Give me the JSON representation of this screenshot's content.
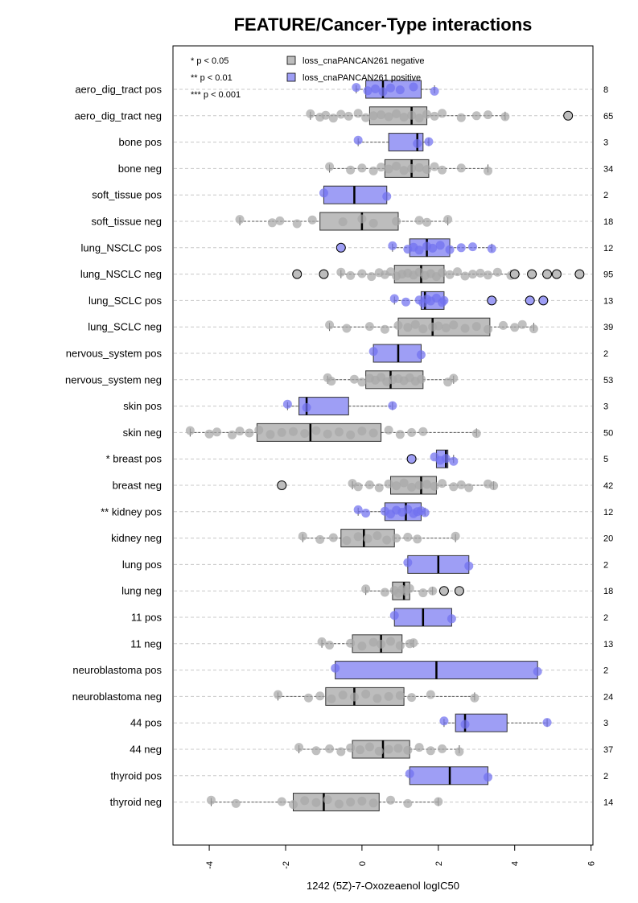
{
  "chart_data": {
    "type": "boxplot",
    "title": "FEATURE/Cancer-Type interactions",
    "xlabel": "1242 (5Z)-7-Oxozeaenol logIC50",
    "xlim": [
      -4.95,
      6.05
    ],
    "xticks": [
      -4,
      -2,
      0,
      2,
      4,
      6
    ],
    "xtick_labels": [
      "-4",
      "-2",
      "0",
      "2",
      "4",
      "6"
    ],
    "grid": "horizontal dashed",
    "legend": {
      "position": "top",
      "significance": [
        "* p < 0.05",
        "** p < 0.01",
        "*** p < 0.001"
      ],
      "groups": [
        {
          "label": "loss_cnaPANCAN261 negative",
          "color": "#bdbdbd"
        },
        {
          "label": "loss_cnaPANCAN261 positive",
          "color": "#9e9ef5"
        }
      ]
    },
    "colors": {
      "negative_fill": "#bdbdbd",
      "positive_fill": "#9e9ef5",
      "negative_point": "#a8a8a8",
      "positive_point": "#7070f0"
    },
    "rows": [
      {
        "label": "aero_dig_tract pos",
        "group": "pos",
        "n": "8",
        "whisker": [
          -0.15,
          1.9
        ],
        "box": [
          0.1,
          1.55
        ],
        "median": 0.55,
        "points": [
          -0.15,
          0.15,
          0.35,
          0.55,
          0.75,
          1.0,
          1.35,
          1.9
        ],
        "outliers": []
      },
      {
        "label": "aero_dig_tract neg",
        "group": "neg",
        "n": "65",
        "whisker": [
          -1.35,
          3.75
        ],
        "box": [
          0.2,
          1.7
        ],
        "median": 1.3,
        "points": [
          -1.35,
          -1.1,
          -0.95,
          -0.75,
          -0.55,
          -0.35,
          -0.1,
          0.1,
          0.3,
          0.5,
          0.7,
          0.9,
          1.1,
          1.3,
          1.5,
          1.7,
          1.9,
          2.1,
          2.6,
          3.0,
          3.3,
          3.75
        ],
        "outliers": [
          5.4
        ]
      },
      {
        "label": "bone pos",
        "group": "pos",
        "n": "3",
        "whisker": [
          -0.1,
          1.75
        ],
        "box": [
          0.7,
          1.6
        ],
        "median": 1.45,
        "points": [
          -0.1,
          1.45,
          1.75
        ],
        "outliers": []
      },
      {
        "label": "bone neg",
        "group": "neg",
        "n": "34",
        "whisker": [
          -0.85,
          3.3
        ],
        "box": [
          0.6,
          1.75
        ],
        "median": 1.3,
        "points": [
          -0.85,
          -0.3,
          0.0,
          0.3,
          0.5,
          0.7,
          0.9,
          1.1,
          1.3,
          1.5,
          1.7,
          1.9,
          2.1,
          2.6,
          3.3
        ],
        "outliers": []
      },
      {
        "label": "soft_tissue pos",
        "group": "pos",
        "n": "2",
        "whisker": [
          -1.0,
          0.65
        ],
        "box": [
          -1.0,
          0.65
        ],
        "median": -0.2,
        "points": [
          -1.0,
          0.65
        ],
        "outliers": []
      },
      {
        "label": "soft_tissue neg",
        "group": "neg",
        "n": "18",
        "whisker": [
          -3.2,
          2.25
        ],
        "box": [
          -1.1,
          0.95
        ],
        "median": 0.0,
        "points": [
          -3.2,
          -2.35,
          -2.15,
          -1.7,
          -1.3,
          -0.5,
          0.0,
          0.3,
          0.9,
          1.5,
          1.7,
          2.25
        ],
        "outliers": []
      },
      {
        "label": "lung_NSCLC pos",
        "group": "pos",
        "n": "12",
        "whisker": [
          0.8,
          3.4
        ],
        "box": [
          1.25,
          2.3
        ],
        "median": 1.7,
        "points": [
          0.8,
          1.2,
          1.35,
          1.5,
          1.7,
          1.85,
          2.05,
          2.3,
          2.6,
          2.9,
          3.4
        ],
        "outliers": [
          -0.55
        ]
      },
      {
        "label": "lung_NSCLC neg",
        "group": "neg",
        "n": "95",
        "whisker": [
          -0.55,
          3.9
        ],
        "box": [
          0.85,
          2.15
        ],
        "median": 1.55,
        "points": [
          -0.55,
          -0.3,
          0.0,
          0.25,
          0.45,
          0.6,
          0.75,
          0.9,
          1.05,
          1.2,
          1.35,
          1.5,
          1.65,
          1.8,
          1.95,
          2.1,
          2.3,
          2.5,
          2.7,
          2.9,
          3.1,
          3.3,
          3.55,
          3.9
        ],
        "outliers": [
          -1.7,
          -1.0,
          4.0,
          4.45,
          4.85,
          5.1,
          5.7
        ]
      },
      {
        "label": "lung_SCLC pos",
        "group": "pos",
        "n": "13",
        "whisker": [
          0.85,
          2.15
        ],
        "box": [
          1.55,
          2.15
        ],
        "median": 1.65,
        "points": [
          0.85,
          1.15,
          1.5,
          1.6,
          1.7,
          1.8,
          1.95,
          2.1,
          2.15
        ],
        "outliers": [
          3.4,
          4.4,
          4.75
        ]
      },
      {
        "label": "lung_SCLC neg",
        "group": "neg",
        "n": "39",
        "whisker": [
          -0.85,
          4.5
        ],
        "box": [
          0.95,
          3.35
        ],
        "median": 1.85,
        "points": [
          -0.85,
          -0.4,
          0.2,
          0.6,
          0.95,
          1.2,
          1.4,
          1.6,
          1.85,
          2.0,
          2.2,
          2.4,
          2.7,
          3.0,
          3.3,
          3.7,
          4.0,
          4.2,
          4.5
        ],
        "outliers": []
      },
      {
        "label": "nervous_system pos",
        "group": "pos",
        "n": "2",
        "whisker": [
          0.3,
          1.55
        ],
        "box": [
          0.3,
          1.55
        ],
        "median": 0.95,
        "points": [
          0.3,
          1.55
        ],
        "outliers": []
      },
      {
        "label": "nervous_system neg",
        "group": "neg",
        "n": "53",
        "whisker": [
          -0.9,
          2.4
        ],
        "box": [
          0.1,
          1.6
        ],
        "median": 0.75,
        "points": [
          -0.9,
          -0.8,
          -0.2,
          0.0,
          0.2,
          0.35,
          0.5,
          0.65,
          0.8,
          0.95,
          1.1,
          1.25,
          1.4,
          1.55,
          2.25,
          2.4
        ],
        "outliers": []
      },
      {
        "label": "skin pos",
        "group": "pos",
        "n": "3",
        "whisker": [
          -1.95,
          0.8
        ],
        "box": [
          -1.65,
          -0.35
        ],
        "median": -1.45,
        "points": [
          -1.95,
          -1.45,
          0.8
        ],
        "outliers": []
      },
      {
        "label": "skin neg",
        "group": "neg",
        "n": "50",
        "whisker": [
          -4.5,
          3.0
        ],
        "box": [
          -2.75,
          0.5
        ],
        "median": -1.35,
        "points": [
          -4.5,
          -4.0,
          -3.8,
          -3.4,
          -3.2,
          -2.95,
          -2.7,
          -2.4,
          -2.1,
          -1.8,
          -1.5,
          -1.2,
          -0.9,
          -0.6,
          -0.3,
          0.0,
          0.3,
          0.7,
          1.0,
          1.3,
          1.6,
          3.0
        ],
        "outliers": []
      },
      {
        "label": "* breast pos",
        "group": "pos",
        "n": "5",
        "whisker": [
          1.95,
          2.4
        ],
        "box": [
          1.95,
          2.25
        ],
        "median": 2.2,
        "points": [
          1.9,
          2.05,
          2.2,
          2.4
        ],
        "outliers": [
          1.3
        ]
      },
      {
        "label": "breast neg",
        "group": "neg",
        "n": "42",
        "whisker": [
          -0.25,
          3.45
        ],
        "box": [
          0.75,
          1.95
        ],
        "median": 1.55,
        "points": [
          -0.25,
          -0.1,
          0.2,
          0.45,
          0.7,
          0.9,
          1.1,
          1.3,
          1.5,
          1.7,
          1.9,
          2.1,
          2.4,
          2.6,
          2.8,
          3.3,
          3.45
        ],
        "outliers": [
          -2.1
        ]
      },
      {
        "label": "** kidney pos",
        "group": "pos",
        "n": "12",
        "whisker": [
          -0.1,
          1.65
        ],
        "box": [
          0.6,
          1.55
        ],
        "median": 1.15,
        "points": [
          -0.1,
          0.1,
          0.6,
          0.75,
          0.9,
          1.05,
          1.2,
          1.35,
          1.45,
          1.55,
          1.65
        ],
        "outliers": []
      },
      {
        "label": "kidney neg",
        "group": "neg",
        "n": "20",
        "whisker": [
          -1.55,
          2.45
        ],
        "box": [
          -0.55,
          0.85
        ],
        "median": 0.05,
        "points": [
          -1.55,
          -1.1,
          -0.75,
          -0.4,
          -0.1,
          0.15,
          0.4,
          0.65,
          0.9,
          1.2,
          1.45,
          2.45
        ],
        "outliers": []
      },
      {
        "label": "lung pos",
        "group": "pos",
        "n": "2",
        "whisker": [
          1.2,
          2.8
        ],
        "box": [
          1.2,
          2.8
        ],
        "median": 2.0,
        "points": [
          1.2,
          2.8
        ],
        "outliers": []
      },
      {
        "label": "lung neg",
        "group": "neg",
        "n": "18",
        "whisker": [
          0.1,
          1.85
        ],
        "box": [
          0.8,
          1.25
        ],
        "median": 1.1,
        "points": [
          0.1,
          0.6,
          0.85,
          0.95,
          1.05,
          1.15,
          1.25,
          1.6,
          1.85
        ],
        "outliers": [
          2.15,
          2.55
        ]
      },
      {
        "label": "11 pos",
        "group": "pos",
        "n": "2",
        "whisker": [
          0.85,
          2.35
        ],
        "box": [
          0.85,
          2.35
        ],
        "median": 1.6,
        "points": [
          0.85,
          2.35
        ],
        "outliers": []
      },
      {
        "label": "11 neg",
        "group": "neg",
        "n": "13",
        "whisker": [
          -1.05,
          1.35
        ],
        "box": [
          -0.25,
          1.05
        ],
        "median": 0.5,
        "points": [
          -1.05,
          -0.85,
          -0.3,
          0.0,
          0.3,
          0.5,
          0.75,
          1.0,
          1.25,
          1.35
        ],
        "outliers": []
      },
      {
        "label": "neuroblastoma pos",
        "group": "pos",
        "n": "2",
        "whisker": [
          -0.7,
          4.6
        ],
        "box": [
          -0.7,
          4.6
        ],
        "median": 1.95,
        "points": [
          -0.7,
          4.6
        ],
        "outliers": []
      },
      {
        "label": "neuroblastoma neg",
        "group": "neg",
        "n": "24",
        "whisker": [
          -2.2,
          2.95
        ],
        "box": [
          -0.95,
          1.1
        ],
        "median": -0.2,
        "points": [
          -2.2,
          -1.4,
          -1.1,
          -0.8,
          -0.5,
          -0.2,
          0.1,
          0.4,
          0.7,
          1.0,
          1.3,
          1.8,
          2.95
        ],
        "outliers": []
      },
      {
        "label": "44 pos",
        "group": "pos",
        "n": "3",
        "whisker": [
          2.15,
          4.85
        ],
        "box": [
          2.45,
          3.8
        ],
        "median": 2.7,
        "points": [
          2.15,
          2.7,
          4.85
        ],
        "outliers": []
      },
      {
        "label": "44 neg",
        "group": "neg",
        "n": "37",
        "whisker": [
          -1.65,
          2.55
        ],
        "box": [
          -0.25,
          1.25
        ],
        "median": 0.55,
        "points": [
          -1.65,
          -1.2,
          -0.85,
          -0.55,
          -0.3,
          -0.05,
          0.2,
          0.45,
          0.7,
          0.95,
          1.2,
          1.5,
          1.8,
          2.1,
          2.55
        ],
        "outliers": []
      },
      {
        "label": "thyroid pos",
        "group": "pos",
        "n": "2",
        "whisker": [
          1.25,
          3.3
        ],
        "box": [
          1.25,
          3.3
        ],
        "median": 2.3,
        "points": [
          1.25,
          3.3
        ],
        "outliers": []
      },
      {
        "label": "thyroid neg",
        "group": "neg",
        "n": "14",
        "whisker": [
          -3.95,
          2.0
        ],
        "box": [
          -1.8,
          0.45
        ],
        "median": -1.0,
        "points": [
          -3.95,
          -3.3,
          -2.1,
          -1.8,
          -1.5,
          -1.2,
          -0.9,
          -0.6,
          -0.3,
          0.0,
          0.3,
          0.75,
          1.2,
          2.0
        ],
        "outliers": []
      }
    ]
  }
}
